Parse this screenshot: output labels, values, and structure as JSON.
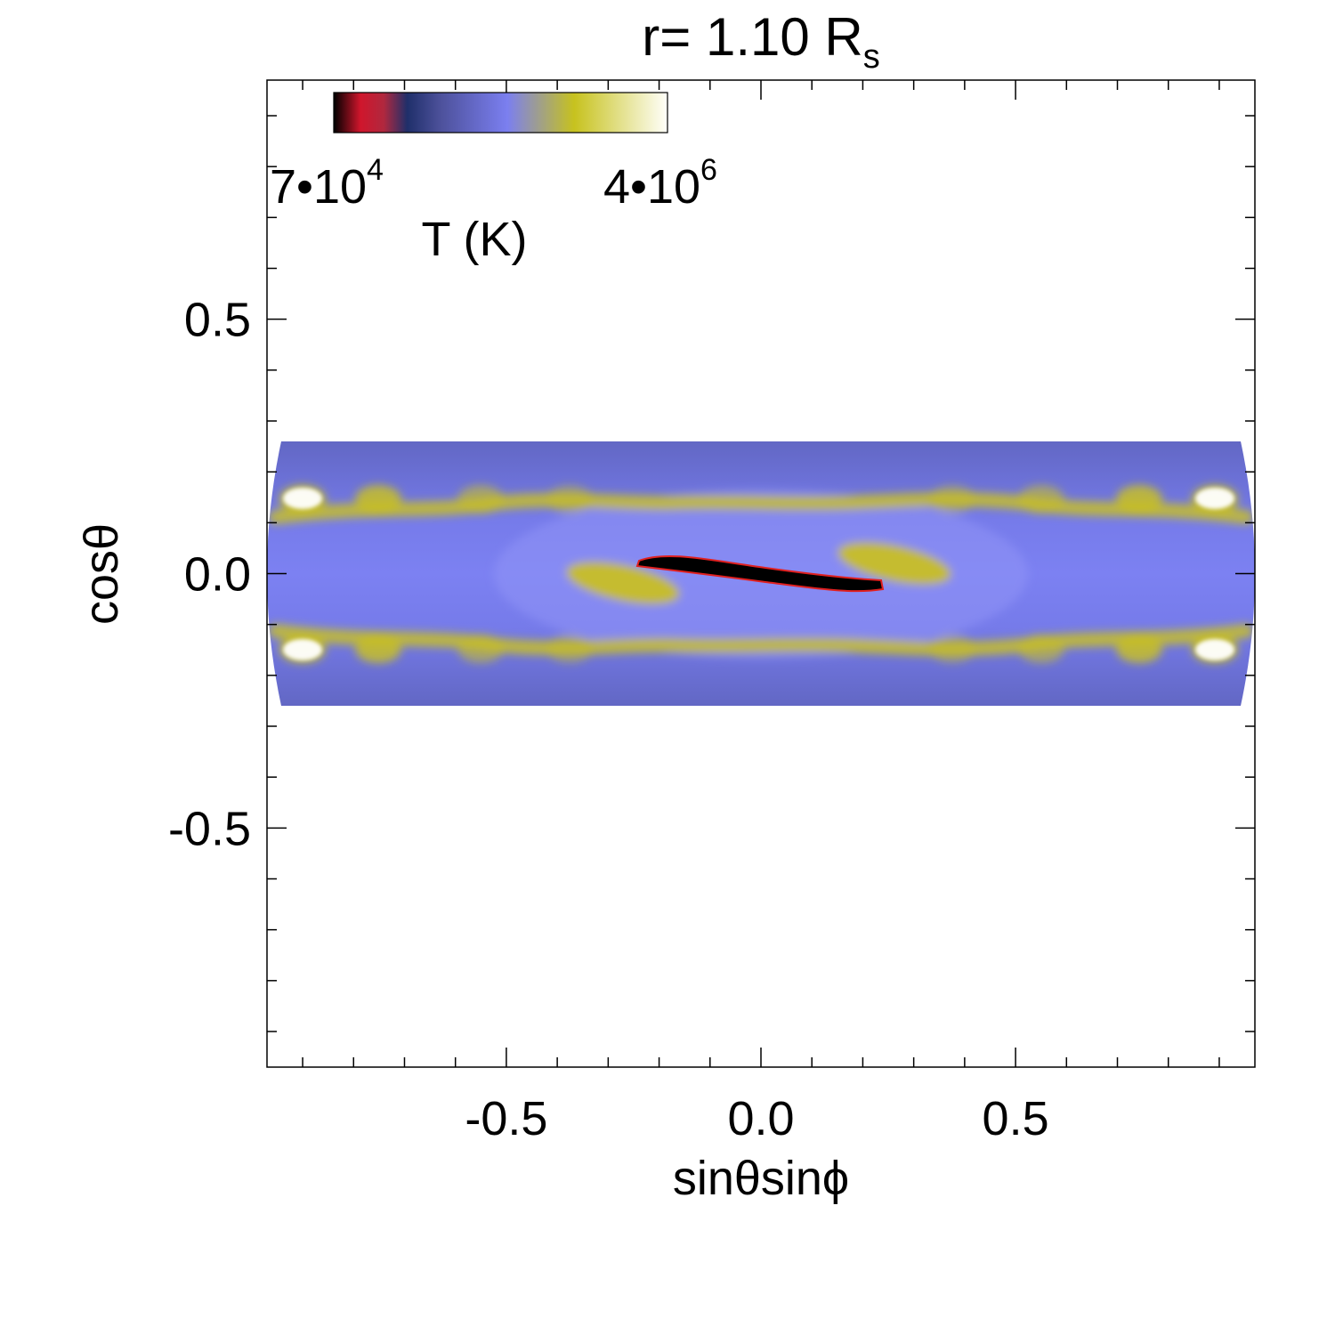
{
  "chart_data": {
    "type": "heatmap",
    "title": {
      "prefix": "r=  1.10 R",
      "subscript": "s"
    },
    "xlabel": "sinθsinϕ",
    "ylabel": "cosθ",
    "xlim": [
      -0.97,
      0.97
    ],
    "ylim": [
      -0.97,
      0.97
    ],
    "x_ticks": [
      {
        "value": -0.5,
        "label": "-0.5"
      },
      {
        "value": 0.0,
        "label": "0.0"
      },
      {
        "value": 0.5,
        "label": "0.5"
      }
    ],
    "y_ticks": [
      {
        "value": 0.5,
        "label": "0.5"
      },
      {
        "value": 0.0,
        "label": "0.0"
      },
      {
        "value": -0.5,
        "label": "-0.5"
      }
    ],
    "minor_tick_step": 0.1,
    "grid": false,
    "colorbar": {
      "label": "T (K)",
      "min_label": {
        "base": "7•10",
        "exp": "4"
      },
      "max_label": {
        "base": "4•10",
        "exp": "6"
      },
      "min_value": 70000,
      "max_value": 4000000,
      "placement": "top-left",
      "stops": [
        "#000000",
        "#d0162c",
        "#1f2f6a",
        "#7b7ff0",
        "#c7c21e",
        "#fffffa"
      ]
    },
    "colors": {
      "background": "#7077e0",
      "hot": "#c8bf24",
      "hottest": "#ffffff",
      "cold": "#000000",
      "contour": "#e02020"
    },
    "data_extent": {
      "x": [
        -0.97,
        0.97
      ],
      "y": [
        -0.26,
        0.26
      ]
    }
  }
}
